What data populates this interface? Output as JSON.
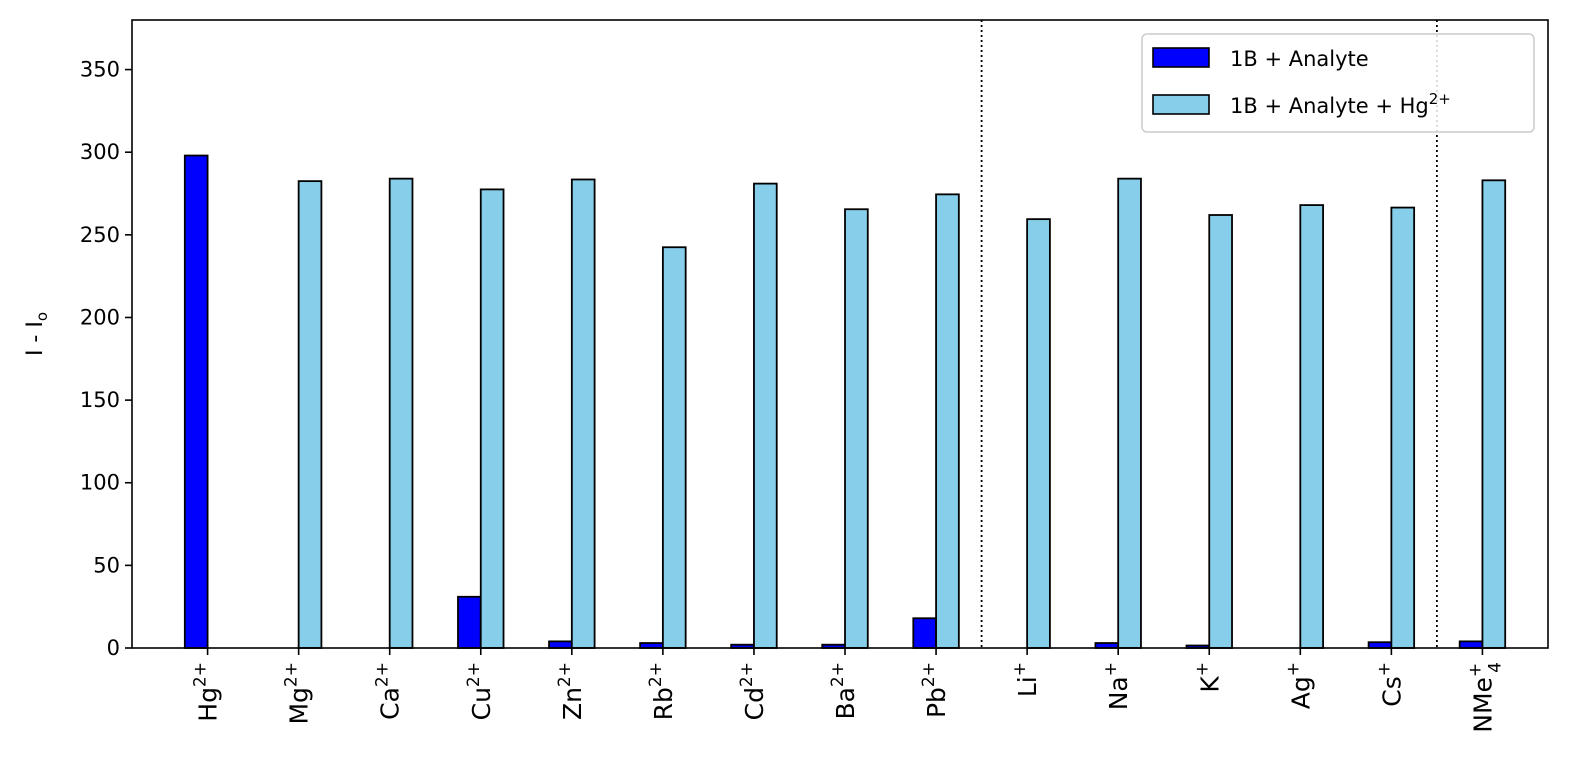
{
  "chart_data": {
    "type": "bar",
    "ylabel": "I - I",
    "ylabel_subscript": "o",
    "ylim": [
      0,
      380
    ],
    "yticks": [
      "0",
      "50",
      "100",
      "150",
      "200",
      "250",
      "300",
      "350"
    ],
    "grid": false,
    "legend_position": "top-right",
    "categories": [
      {
        "base": "Hg",
        "sup": "2+"
      },
      {
        "base": "Mg",
        "sup": "2+"
      },
      {
        "base": "Ca",
        "sup": "2+"
      },
      {
        "base": "Cu",
        "sup": "2+"
      },
      {
        "base": "Zn",
        "sup": "2+"
      },
      {
        "base": "Rb",
        "sup": "2+"
      },
      {
        "base": "Cd",
        "sup": "2+"
      },
      {
        "base": "Ba",
        "sup": "2+"
      },
      {
        "base": "Pb",
        "sup": "2+"
      },
      {
        "base": "Li",
        "sup": "+"
      },
      {
        "base": "Na",
        "sup": "+"
      },
      {
        "base": "K",
        "sup": "+"
      },
      {
        "base": "Ag",
        "sup": "+"
      },
      {
        "base": "Cs",
        "sup": "+"
      },
      {
        "base": "NMe",
        "sup": "+",
        "sub": "4"
      }
    ],
    "series": [
      {
        "name": "1B + Analyte",
        "name_sup": "",
        "color": "#0000ff",
        "values": [
          298,
          0,
          0,
          31,
          4,
          3,
          2,
          2,
          18,
          0,
          3,
          1.5,
          0,
          3.5,
          4
        ]
      },
      {
        "name": "1B + Analyte + Hg",
        "name_sup": "2+",
        "color": "#87ceeb",
        "values": [
          null,
          282.5,
          284,
          277.5,
          283.5,
          242.5,
          281,
          265.5,
          274.5,
          259.5,
          284,
          262,
          268,
          266.5,
          283
        ]
      }
    ],
    "separators_after_index": [
      8,
      13
    ],
    "edge_color": "#000000"
  }
}
